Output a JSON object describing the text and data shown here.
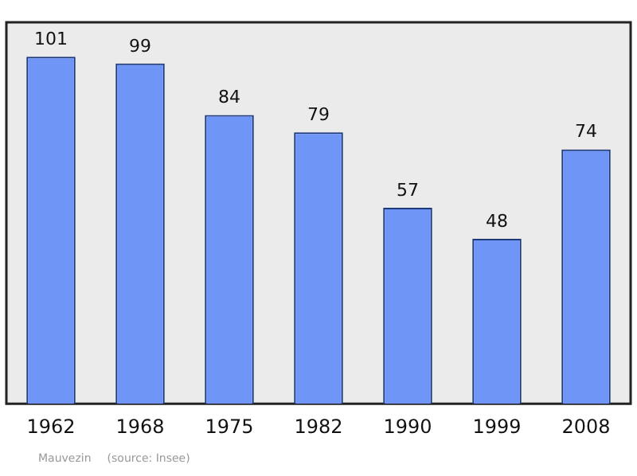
{
  "chart_data": {
    "type": "bar",
    "categories": [
      "1962",
      "1968",
      "1975",
      "1982",
      "1990",
      "1999",
      "2008"
    ],
    "values": [
      101,
      99,
      84,
      79,
      57,
      48,
      74
    ],
    "color": "#6f96f6",
    "ylim": [
      0,
      111
    ],
    "tick_labels": "x",
    "grid": false,
    "legend": false,
    "data_labels": true,
    "annotations": [
      "Mauvezin",
      "(source: Insee)"
    ]
  }
}
